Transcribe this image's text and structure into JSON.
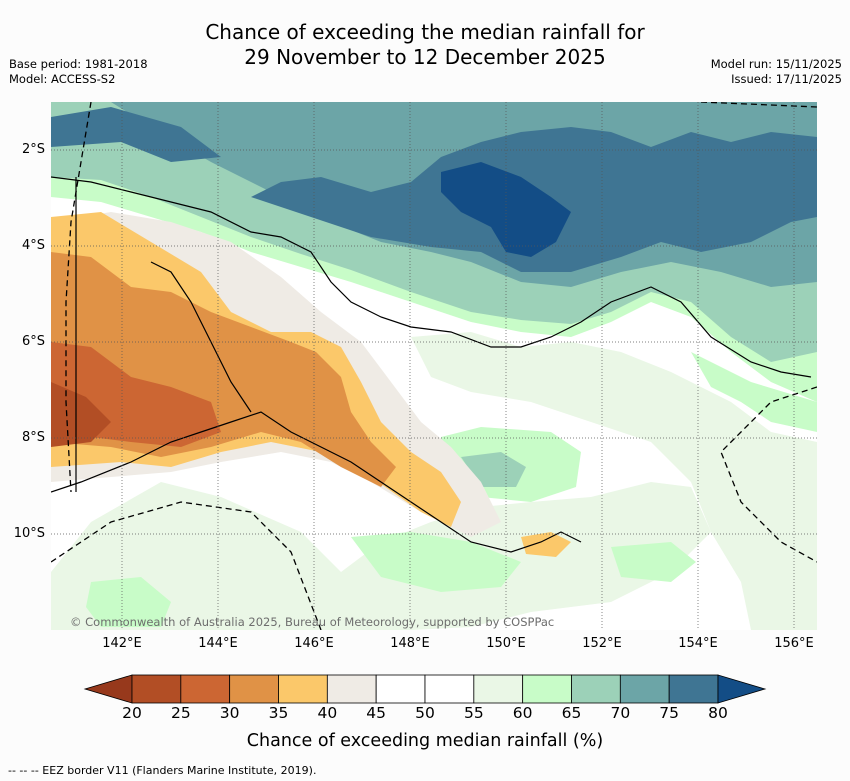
{
  "title": {
    "line1": "Chance of exceeding the median rainfall for",
    "line2": "29 November to 12 December 2025"
  },
  "metadata": {
    "base_period": "Base period: 1981-2018",
    "model": "Model: ACCESS-S2",
    "model_run": "Model run: 15/11/2025",
    "issued": "Issued: 17/11/2025"
  },
  "map": {
    "latitude_labels": [
      "2°S",
      "4°S",
      "6°S",
      "8°S",
      "10°S"
    ],
    "longitude_labels": [
      "142°E",
      "144°E",
      "146°E",
      "148°E",
      "150°E",
      "152°E",
      "154°E",
      "156°E"
    ],
    "copyright": "© Commonwealth of Australia 2025, Bureau of Meteorology, supported by COSPPac"
  },
  "colorbar": {
    "title": "Chance of exceeding median rainfall (%)",
    "tick_labels": [
      "20",
      "25",
      "30",
      "35",
      "40",
      "45",
      "50",
      "55",
      "60",
      "65",
      "70",
      "75",
      "80"
    ],
    "colors": {
      "below_20": "#97391c",
      "c20_25": "#b24e25",
      "c25_30": "#cc6633",
      "c30_35": "#e09246",
      "c35_40": "#fbc86a",
      "c40_45": "#efebe5",
      "c45_50": "#ffffff",
      "c50_55": "#ffffff",
      "c55_60": "#eaf7e6",
      "c60_65": "#c8fcc8",
      "c65_70": "#9cd1b8",
      "c70_75": "#6ca5a7",
      "c75_80": "#3f7593",
      "above_80": "#134d86"
    }
  },
  "footnote": "--  --  -- EEZ border V11 (Flanders Marine Institute, 2019)."
}
